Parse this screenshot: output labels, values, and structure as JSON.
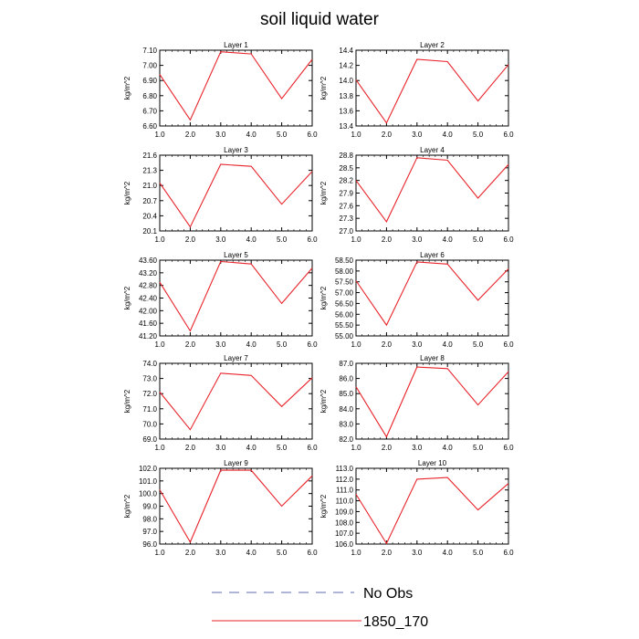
{
  "figure": {
    "title": "soil liquid water",
    "legend": [
      {
        "label": "No Obs",
        "color": "#5f6bb0",
        "dash": true
      },
      {
        "label": "1850_170",
        "color": "#e8232a",
        "dash": false
      }
    ]
  },
  "chart_data": [
    {
      "type": "line",
      "title": "Layer 1",
      "ylabel": "kg/m^2",
      "x": [
        1,
        2,
        3,
        4,
        5,
        6
      ],
      "xlim": [
        1,
        6
      ],
      "xticks": [
        "1.0",
        "2.0",
        "3.0",
        "4.0",
        "5.0",
        "6.0"
      ],
      "ylim": [
        6.6,
        7.1
      ],
      "yticks": [
        "6.60",
        "6.70",
        "6.80",
        "6.90",
        "7.00",
        "7.10"
      ],
      "series": [
        {
          "name": "1850_170",
          "values": [
            6.94,
            6.64,
            7.09,
            7.075,
            6.78,
            7.04
          ]
        }
      ]
    },
    {
      "type": "line",
      "title": "Layer 2",
      "ylabel": "kg/m^2",
      "x": [
        1,
        2,
        3,
        4,
        5,
        6
      ],
      "xlim": [
        1,
        6
      ],
      "xticks": [
        "1.0",
        "2.0",
        "3.0",
        "4.0",
        "5.0",
        "6.0"
      ],
      "ylim": [
        13.4,
        14.4
      ],
      "yticks": [
        "13.4",
        "13.6",
        "13.8",
        "14.0",
        "14.2",
        "14.4"
      ],
      "series": [
        {
          "name": "1850_170",
          "values": [
            14.01,
            13.44,
            14.28,
            14.25,
            13.73,
            14.21
          ]
        }
      ]
    },
    {
      "type": "line",
      "title": "Layer 3",
      "ylabel": "kg/m^2",
      "x": [
        1,
        2,
        3,
        4,
        5,
        6
      ],
      "xlim": [
        1,
        6
      ],
      "xticks": [
        "1.0",
        "2.0",
        "3.0",
        "4.0",
        "5.0",
        "6.0"
      ],
      "ylim": [
        20.1,
        21.6
      ],
      "yticks": [
        "20.1",
        "20.4",
        "20.7",
        "21.0",
        "21.3",
        "21.6"
      ],
      "series": [
        {
          "name": "1850_170",
          "values": [
            21.05,
            20.18,
            21.42,
            21.38,
            20.63,
            21.28
          ]
        }
      ]
    },
    {
      "type": "line",
      "title": "Layer 4",
      "ylabel": "kg/m^2",
      "x": [
        1,
        2,
        3,
        4,
        5,
        6
      ],
      "xlim": [
        1,
        6
      ],
      "xticks": [
        "1.0",
        "2.0",
        "3.0",
        "4.0",
        "5.0",
        "6.0"
      ],
      "ylim": [
        27.0,
        28.8
      ],
      "yticks": [
        "27.0",
        "27.3",
        "27.6",
        "27.9",
        "28.2",
        "28.5",
        "28.8"
      ],
      "series": [
        {
          "name": "1850_170",
          "values": [
            28.2,
            27.22,
            28.74,
            28.68,
            27.78,
            28.58
          ]
        }
      ]
    },
    {
      "type": "line",
      "title": "Layer 5",
      "ylabel": "kg/m^2",
      "x": [
        1,
        2,
        3,
        4,
        5,
        6
      ],
      "xlim": [
        1,
        6
      ],
      "xticks": [
        "1.0",
        "2.0",
        "3.0",
        "4.0",
        "5.0",
        "6.0"
      ],
      "ylim": [
        41.2,
        43.6
      ],
      "yticks": [
        "41.20",
        "41.60",
        "42.00",
        "42.40",
        "42.80",
        "43.20",
        "43.60"
      ],
      "series": [
        {
          "name": "1850_170",
          "values": [
            42.9,
            41.36,
            43.56,
            43.48,
            42.23,
            43.35
          ]
        }
      ]
    },
    {
      "type": "line",
      "title": "Layer 6",
      "ylabel": "kg/m^2",
      "x": [
        1,
        2,
        3,
        4,
        5,
        6
      ],
      "xlim": [
        1,
        6
      ],
      "xticks": [
        "1.0",
        "2.0",
        "3.0",
        "4.0",
        "5.0",
        "6.0"
      ],
      "ylim": [
        55.0,
        58.5
      ],
      "yticks": [
        "55.00",
        "55.50",
        "56.00",
        "56.50",
        "57.00",
        "57.50",
        "58.00",
        "58.50"
      ],
      "series": [
        {
          "name": "1850_170",
          "values": [
            57.55,
            55.5,
            58.42,
            58.32,
            56.65,
            58.1
          ]
        }
      ]
    },
    {
      "type": "line",
      "title": "Layer 7",
      "ylabel": "kg/m^2",
      "x": [
        1,
        2,
        3,
        4,
        5,
        6
      ],
      "xlim": [
        1,
        6
      ],
      "xticks": [
        "1.0",
        "2.0",
        "3.0",
        "4.0",
        "5.0",
        "6.0"
      ],
      "ylim": [
        69.0,
        74.0
      ],
      "yticks": [
        "69.0",
        "70.0",
        "71.0",
        "72.0",
        "73.0",
        "74.0"
      ],
      "series": [
        {
          "name": "1850_170",
          "values": [
            72.1,
            69.62,
            73.35,
            73.2,
            71.15,
            73.05
          ]
        }
      ]
    },
    {
      "type": "line",
      "title": "Layer 8",
      "ylabel": "kg/m^2",
      "x": [
        1,
        2,
        3,
        4,
        5,
        6
      ],
      "xlim": [
        1,
        6
      ],
      "xticks": [
        "1.0",
        "2.0",
        "3.0",
        "4.0",
        "5.0",
        "6.0"
      ],
      "ylim": [
        82.0,
        87.0
      ],
      "yticks": [
        "82.0",
        "83.0",
        "84.0",
        "85.0",
        "86.0",
        "87.0"
      ],
      "series": [
        {
          "name": "1850_170",
          "values": [
            85.45,
            82.15,
            86.75,
            86.65,
            84.25,
            86.45
          ]
        }
      ]
    },
    {
      "type": "line",
      "title": "Layer 9",
      "ylabel": "kg/m^2",
      "x": [
        1,
        2,
        3,
        4,
        5,
        6
      ],
      "xlim": [
        1,
        6
      ],
      "xticks": [
        "1.0",
        "2.0",
        "3.0",
        "4.0",
        "5.0",
        "6.0"
      ],
      "ylim": [
        96.0,
        102.0
      ],
      "yticks": [
        "96.0",
        "97.0",
        "98.0",
        "99.0",
        "100.0",
        "101.0",
        "102.0"
      ],
      "series": [
        {
          "name": "1850_170",
          "values": [
            100.3,
            96.15,
            101.85,
            101.85,
            99.0,
            101.4
          ]
        }
      ]
    },
    {
      "type": "line",
      "title": "Layer 10",
      "ylabel": "kg/m^2",
      "x": [
        1,
        2,
        3,
        4,
        5,
        6
      ],
      "xlim": [
        1,
        6
      ],
      "xticks": [
        "1.0",
        "2.0",
        "3.0",
        "4.0",
        "5.0",
        "6.0"
      ],
      "ylim": [
        106.0,
        113.0
      ],
      "yticks": [
        "106.0",
        "107.0",
        "108.0",
        "109.0",
        "110.0",
        "111.0",
        "112.0",
        "113.0"
      ],
      "series": [
        {
          "name": "1850_170",
          "values": [
            110.6,
            106.05,
            112.0,
            112.15,
            109.15,
            111.6
          ]
        }
      ]
    }
  ]
}
